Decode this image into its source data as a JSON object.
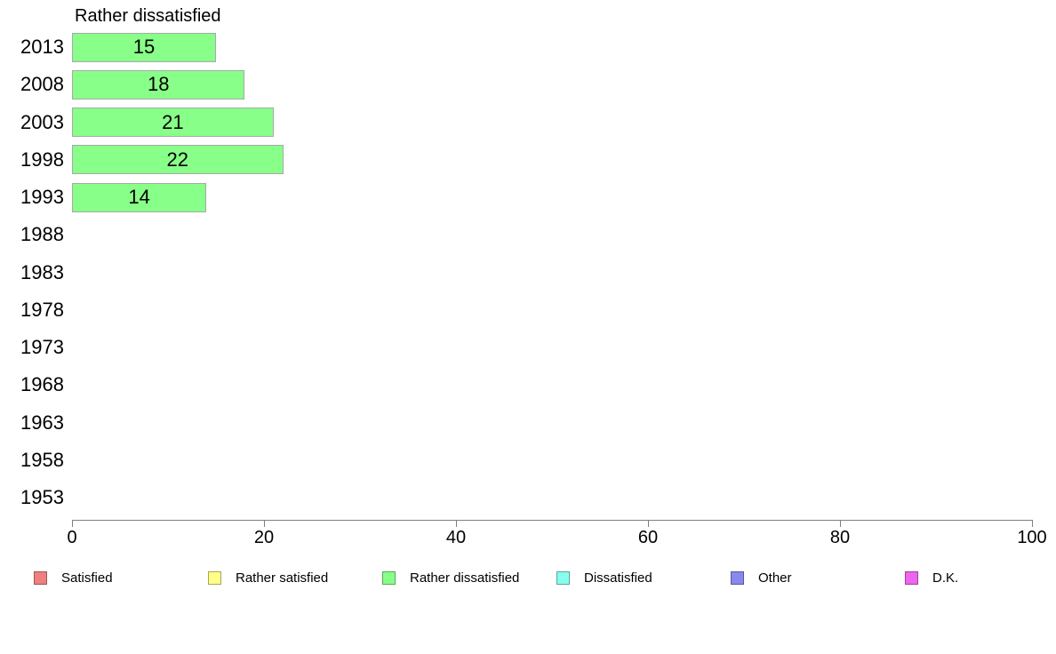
{
  "chart_data": {
    "type": "bar",
    "orientation": "horizontal",
    "title": "Rather dissatisfied",
    "series_name": "Rather dissatisfied",
    "categories": [
      "2013",
      "2008",
      "2003",
      "1998",
      "1993",
      "1988",
      "1983",
      "1978",
      "1973",
      "1968",
      "1963",
      "1958",
      "1953"
    ],
    "values": [
      15,
      18,
      21,
      22,
      14,
      null,
      null,
      null,
      null,
      null,
      null,
      null,
      null
    ],
    "xlim": [
      0,
      100
    ],
    "x_ticks": [
      0,
      20,
      40,
      60,
      80,
      100
    ],
    "xlabel": "",
    "ylabel": "",
    "grid": false,
    "value_labels_shown": true,
    "bar_color": "#88FF88",
    "bar_border_color": "#a9a9a9",
    "axis_color": "#808080",
    "legend_position": "bottom"
  },
  "legend": {
    "items": [
      {
        "label": "Satisfied",
        "color": "#F08080"
      },
      {
        "label": "Rather satisfied",
        "color": "#FFFF88"
      },
      {
        "label": "Rather dissatisfied",
        "color": "#88FF88"
      },
      {
        "label": "Dissatisfied",
        "color": "#88FFEE"
      },
      {
        "label": "Other",
        "color": "#8888EE"
      },
      {
        "label": "D.K.",
        "color": "#EE66EE"
      }
    ]
  }
}
